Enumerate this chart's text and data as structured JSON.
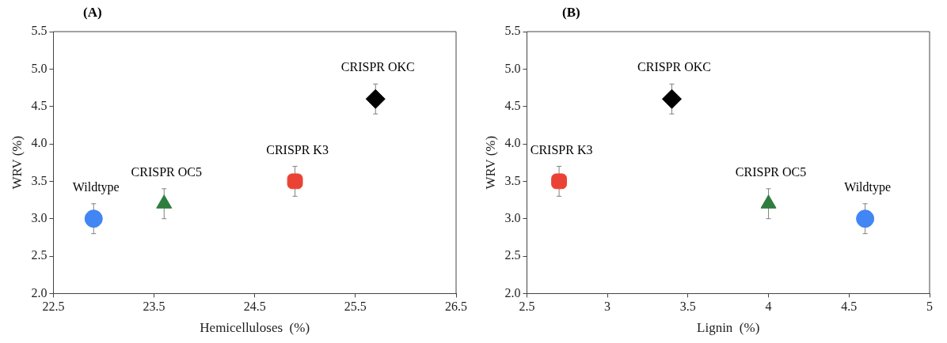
{
  "chart_data": [
    {
      "type": "scatter",
      "title": "(A)",
      "xlabel": "Hemicelluloses  (%)",
      "ylabel": "WRV (%)",
      "xlim": [
        22.5,
        26.5
      ],
      "xticks": [
        22.5,
        23.5,
        24.5,
        25.5,
        26.5
      ],
      "ylim": [
        2.0,
        5.5
      ],
      "yticks": [
        {
          "value": 2,
          "label": "2.0"
        },
        {
          "value": 2.5,
          "label": "2.5"
        },
        {
          "value": 3,
          "label": "3.0"
        },
        {
          "value": 3.5,
          "label": "3.5"
        },
        {
          "value": 4,
          "label": "4.0"
        },
        {
          "value": 4.5,
          "label": "4.5"
        },
        {
          "value": 5,
          "label": "5.0"
        },
        {
          "value": 5.5,
          "label": "5.5"
        }
      ],
      "grid": false,
      "legend": false,
      "series": [
        {
          "name": "Wildtype",
          "color": "#4285f4",
          "marker": "circle",
          "x": [
            22.9
          ],
          "values": [
            3.0
          ],
          "errors": [
            0.2
          ]
        },
        {
          "name": "CRISPR OC5",
          "color": "#2e7d3e",
          "marker": "triangle",
          "x": [
            23.6
          ],
          "values": [
            3.2
          ],
          "errors": [
            0.2
          ]
        },
        {
          "name": "CRISPR K3",
          "color": "#ea4335",
          "marker": "square",
          "x": [
            24.9
          ],
          "values": [
            3.5
          ],
          "errors": [
            0.2
          ]
        },
        {
          "name": "CRISPR OKC",
          "color": "#000000",
          "marker": "diamond",
          "x": [
            25.7
          ],
          "values": [
            4.6
          ],
          "errors": [
            0.2
          ]
        }
      ]
    },
    {
      "type": "scatter",
      "title": "(B)",
      "xlabel": "Lignin  (%)",
      "ylabel": "WRV (%)",
      "xlim": [
        2.5,
        5
      ],
      "xticks": [
        2.5,
        3,
        3.5,
        4,
        4.5,
        5
      ],
      "ylim": [
        2.0,
        5.5
      ],
      "yticks": [
        {
          "value": 2,
          "label": "2.0"
        },
        {
          "value": 2.5,
          "label": "2.5"
        },
        {
          "value": 3,
          "label": "3.0"
        },
        {
          "value": 3.5,
          "label": "3.5"
        },
        {
          "value": 4,
          "label": "4.0"
        },
        {
          "value": 4.5,
          "label": "4.5"
        },
        {
          "value": 5,
          "label": "5.0"
        },
        {
          "value": 5.5,
          "label": "5.5"
        }
      ],
      "grid": false,
      "legend": false,
      "series": [
        {
          "name": "CRISPR K3",
          "color": "#ea4335",
          "marker": "square",
          "x": [
            2.7
          ],
          "values": [
            3.5
          ],
          "errors": [
            0.2
          ]
        },
        {
          "name": "CRISPR OKC",
          "color": "#000000",
          "marker": "diamond",
          "x": [
            3.4
          ],
          "values": [
            4.6
          ],
          "errors": [
            0.2
          ]
        },
        {
          "name": "CRISPR OC5",
          "color": "#2e7d3e",
          "marker": "triangle",
          "x": [
            4.0
          ],
          "values": [
            3.2
          ],
          "errors": [
            0.2
          ]
        },
        {
          "name": "Wildtype",
          "color": "#4285f4",
          "marker": "circle",
          "x": [
            4.6
          ],
          "values": [
            3.0
          ],
          "errors": [
            0.2
          ]
        }
      ]
    }
  ]
}
